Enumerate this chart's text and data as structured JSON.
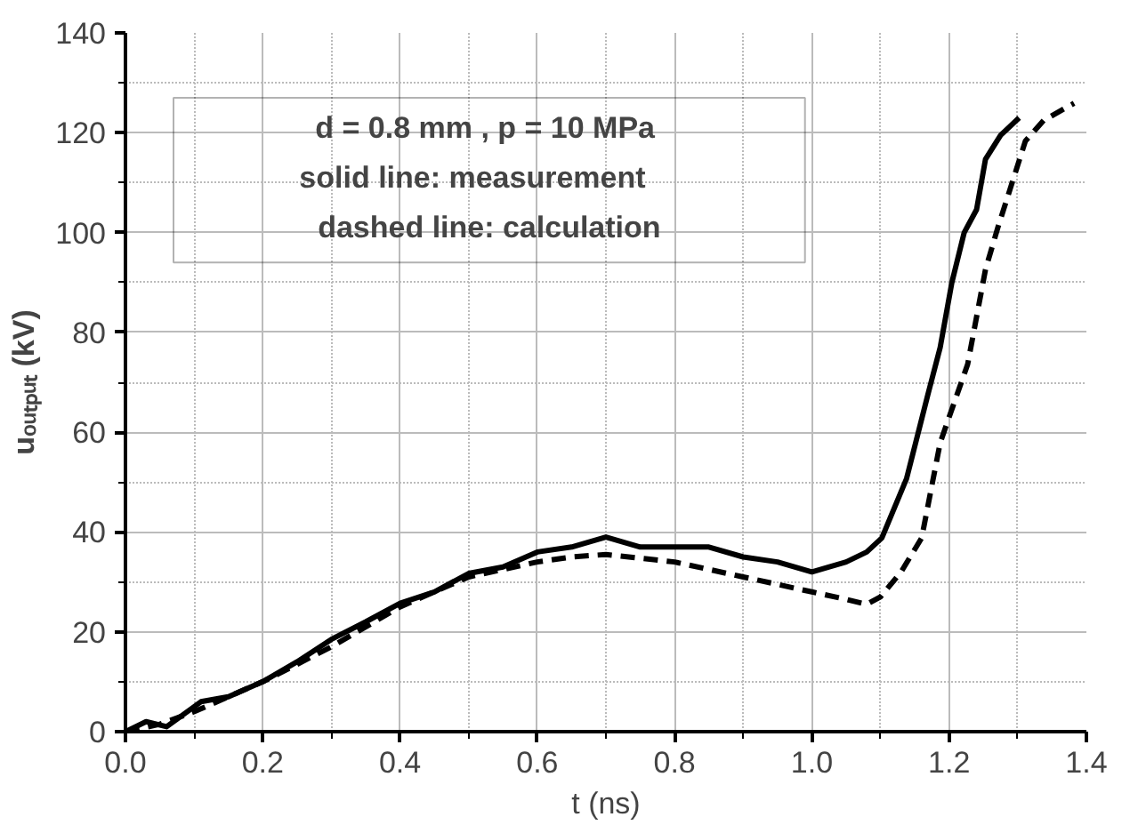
{
  "chart_data": {
    "type": "line",
    "xlabel": "t (ns)",
    "ylabel": "uₒᵤₜₚᵤₜ (kV)",
    "annotations": [
      "d = 0.8 mm ,  p = 10 MPa",
      "solid line:     measurement",
      "dashed line: calculation"
    ],
    "xlim": [
      0,
      1.4
    ],
    "ylim": [
      0,
      140
    ],
    "xticks": [
      {
        "value": 0,
        "label": "0.0"
      },
      0.2,
      0.4,
      0.6,
      0.8,
      {
        "value": 1,
        "label": "1.0"
      },
      1.2,
      1.4
    ],
    "yticks": [
      0,
      20,
      40,
      60,
      80,
      100,
      120,
      140
    ],
    "grid": true,
    "series": [
      {
        "color": "#000000",
        "line_style": "solid",
        "x": [
          0,
          0.03,
          0.06,
          0.11,
          0.15,
          0.2,
          0.25,
          0.3,
          0.35,
          0.4,
          0.45,
          0.5,
          0.55,
          0.6,
          0.65,
          0.7,
          0.75,
          0.8,
          0.85,
          0.9,
          0.95,
          1.0,
          1.05,
          1.08,
          1.102,
          1.138,
          1.169,
          1.187,
          1.204,
          1.222,
          1.24,
          1.253,
          1.275,
          1.302
        ],
        "values": [
          0,
          2,
          1,
          6,
          7,
          10,
          14,
          18.5,
          22,
          25.7,
          28,
          31.7,
          33,
          36,
          37,
          39,
          37,
          37,
          37,
          35,
          34,
          32,
          34,
          36,
          38.8,
          50.7,
          67.5,
          77,
          90,
          100,
          104.6,
          114.7,
          119.5,
          123
        ]
      },
      {
        "color": "#000000",
        "line_style": "dashed",
        "x": [
          0,
          0.05,
          0.1,
          0.15,
          0.2,
          0.25,
          0.3,
          0.35,
          0.4,
          0.45,
          0.5,
          0.55,
          0.6,
          0.65,
          0.7,
          0.8,
          0.9,
          1.0,
          1.05,
          1.08,
          1.1,
          1.13,
          1.16,
          1.187,
          1.227,
          1.253,
          1.271,
          1.293,
          1.311,
          1.338,
          1.382
        ],
        "values": [
          0,
          1.5,
          4,
          7,
          10,
          13.5,
          17,
          21,
          25,
          28,
          31,
          32.5,
          34,
          35,
          35.5,
          34,
          31,
          28,
          26.5,
          25.5,
          27,
          32,
          38.8,
          57.9,
          73.6,
          92.6,
          101,
          110.5,
          118.3,
          122.5,
          125.9
        ]
      }
    ]
  }
}
